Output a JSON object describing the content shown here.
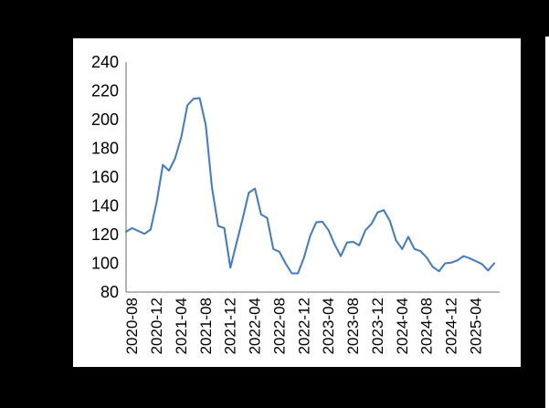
{
  "canvas": {
    "background_color": "#000000",
    "panel_color": "#ffffff"
  },
  "chart_data": {
    "type": "line",
    "x": [
      "2020-07",
      "2020-08",
      "2020-09",
      "2020-10",
      "2020-11",
      "2020-12",
      "2021-01",
      "2021-02",
      "2021-03",
      "2021-04",
      "2021-05",
      "2021-06",
      "2021-07",
      "2021-08",
      "2021-09",
      "2021-10",
      "2021-11",
      "2021-12",
      "2022-01",
      "2022-02",
      "2022-03",
      "2022-04",
      "2022-05",
      "2022-06",
      "2022-07",
      "2022-08",
      "2022-09",
      "2022-10",
      "2022-11",
      "2022-12",
      "2023-01",
      "2023-02",
      "2023-03",
      "2023-04",
      "2023-05",
      "2023-06",
      "2023-07",
      "2023-08",
      "2023-09",
      "2023-10",
      "2023-11",
      "2023-12",
      "2024-01",
      "2024-02",
      "2024-03",
      "2024-04",
      "2024-05",
      "2024-06",
      "2024-07",
      "2024-08",
      "2024-09",
      "2024-10",
      "2024-11",
      "2024-12",
      "2025-01",
      "2025-02",
      "2025-03",
      "2025-04",
      "2025-05",
      "2025-06",
      "2025-07"
    ],
    "values": [
      122,
      124.5,
      122.5,
      120.5,
      123.5,
      143,
      168.5,
      164.5,
      173,
      188,
      210,
      214.5,
      215,
      196,
      153,
      126,
      124.5,
      97,
      114,
      131,
      149,
      152,
      134,
      131.5,
      110,
      108,
      100,
      93,
      93,
      104,
      119,
      128.5,
      129,
      123,
      113,
      105,
      114.5,
      115,
      112.5,
      123,
      127.5,
      135.5,
      137,
      129.5,
      116,
      110,
      118.5,
      110,
      108.5,
      104,
      97.5,
      94.5,
      100,
      100.5,
      102,
      105,
      103.5,
      101.5,
      99.5,
      95,
      100
    ],
    "title": "",
    "xlabel": "",
    "ylabel": "",
    "ylim": [
      80,
      240
    ],
    "yticks": [
      240,
      220,
      200,
      180,
      160,
      140,
      120,
      100,
      80
    ],
    "xtick_labels": [
      "2020-08",
      "2020-12",
      "2021-04",
      "2021-08",
      "2021-12",
      "2022-04",
      "2022-08",
      "2022-12",
      "2023-04",
      "2023-08",
      "2023-12",
      "2024-04",
      "2024-08",
      "2024-12",
      "2025-04"
    ],
    "xtick_rotation": 90,
    "grid": "off",
    "legend": "none",
    "line_color": "#4a7ebb",
    "axis_color": "#8c8c8c",
    "label_color": "#000000"
  }
}
